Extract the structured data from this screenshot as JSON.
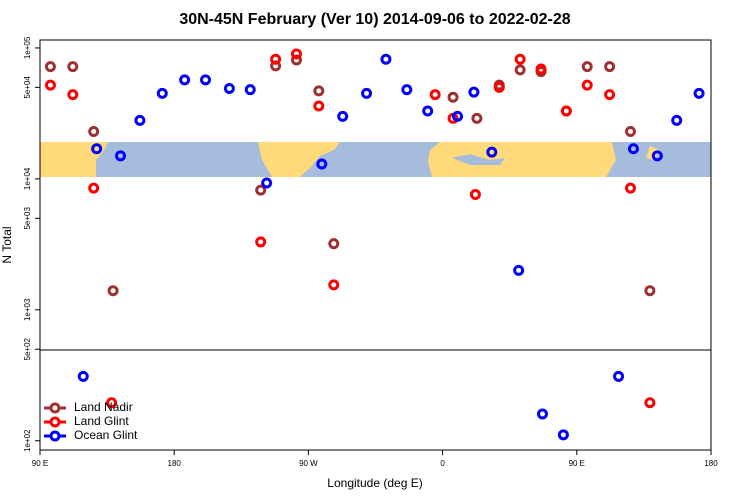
{
  "chart_data": {
    "type": "scatter",
    "title": "30N-45N February (Ver 10)   2014-09-06 to 2022-02-28",
    "x_label": "Longitude (deg E)",
    "y_label": "N Total",
    "log_y": true,
    "legend": "lower left",
    "xlim": [
      90,
      540
    ],
    "ylim": [
      85,
      115000
    ],
    "xticks": [
      {
        "value": 90,
        "label": "90 E"
      },
      {
        "value": 180,
        "label": "180"
      },
      {
        "value": 270,
        "label": "90 W"
      },
      {
        "value": 360,
        "label": "0"
      },
      {
        "value": 450,
        "label": "90 E"
      },
      {
        "value": 540,
        "label": "180"
      }
    ],
    "yticks": [
      {
        "value": 100000,
        "label": "1e+05"
      },
      {
        "value": 50000,
        "label": "5e+04"
      },
      {
        "value": 10000,
        "label": "1e+04"
      },
      {
        "value": 5000,
        "label": "5e+03"
      },
      {
        "value": 1000,
        "label": "1e+03"
      },
      {
        "value": 500,
        "label": "5e+02"
      },
      {
        "value": 100,
        "label": "1e+02"
      }
    ],
    "series": [
      {
        "name": "Land Nadir",
        "color": "#a03030",
        "x": [
          97,
          112,
          126,
          139,
          238,
          248,
          262,
          277,
          287,
          367,
          383,
          398,
          412,
          426,
          443,
          457,
          472,
          486,
          499
        ],
        "values": [
          72000,
          72000,
          23000,
          1400,
          8200,
          73000,
          81000,
          47000,
          3200,
          42000,
          29000,
          52000,
          68000,
          66000,
          33000,
          72000,
          72000,
          23000,
          1400
        ]
      },
      {
        "name": "Land Glint",
        "color": "#ff0000",
        "x": [
          97,
          112,
          126,
          138,
          238,
          248,
          262,
          277,
          287,
          355,
          367,
          382,
          398,
          412,
          426,
          443,
          457,
          472,
          486,
          499
        ],
        "values": [
          52000,
          44000,
          8500,
          195,
          3300,
          82000,
          90000,
          36000,
          1550,
          44000,
          29000,
          7600,
          50000,
          82000,
          69000,
          33000,
          52000,
          44000,
          8500,
          195
        ]
      },
      {
        "name": "Ocean Glint",
        "color": "#0000ff",
        "x": [
          119,
          128,
          144,
          157,
          172,
          187,
          201,
          217,
          231,
          242,
          279,
          293,
          309,
          322,
          336,
          350,
          370,
          381,
          393,
          411,
          427,
          441,
          478,
          488,
          504,
          517,
          532
        ],
        "values": [
          310,
          17000,
          15000,
          28000,
          45000,
          57000,
          57000,
          49000,
          48000,
          9300,
          13000,
          30000,
          45000,
          82000,
          48000,
          33000,
          30000,
          46000,
          16000,
          2000,
          160,
          111,
          310,
          17000,
          15000,
          28000,
          45000
        ]
      }
    ]
  }
}
